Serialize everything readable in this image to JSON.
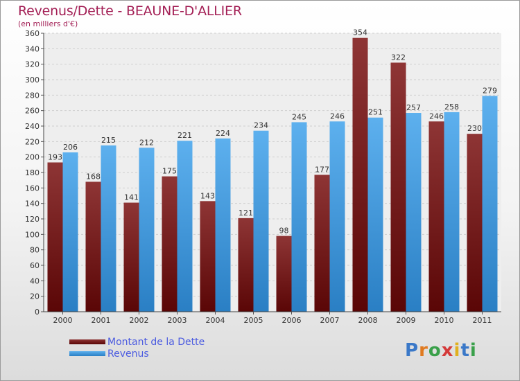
{
  "header": {
    "title": "Revenus/Dette - BEAUNE-D'ALLIER",
    "subtitle": "(en milliers d'€)"
  },
  "logo": {
    "text": "Proxiti"
  },
  "chart_data": {
    "type": "bar",
    "categories": [
      "2000",
      "2001",
      "2002",
      "2003",
      "2004",
      "2005",
      "2006",
      "2007",
      "2008",
      "2009",
      "2010",
      "2011"
    ],
    "series": [
      {
        "name": "Montant de la Dette",
        "color": "#7a1a1a",
        "values": [
          193,
          168,
          141,
          175,
          143,
          121,
          98,
          177,
          354,
          322,
          246,
          230
        ]
      },
      {
        "name": "Revenus",
        "color": "#4aa3e8",
        "values": [
          206,
          215,
          212,
          221,
          224,
          234,
          245,
          246,
          251,
          257,
          258,
          279
        ]
      }
    ],
    "ylim": [
      0,
      360
    ],
    "ytick_step": 20,
    "grid": true,
    "legend_position": "bottom-left"
  }
}
